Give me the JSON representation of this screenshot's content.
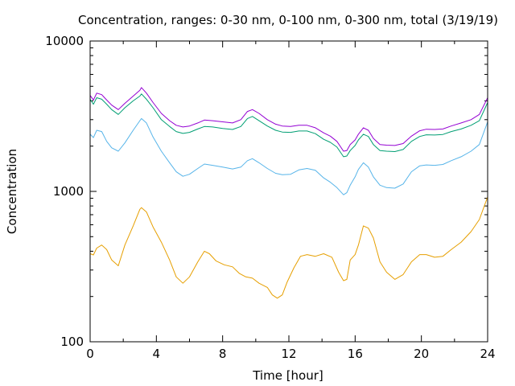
{
  "chart_data": {
    "type": "line",
    "title": "Concentration, ranges: 0-30 nm, 0-100 nm, 0-300 nm, total (3/19/19)",
    "xlabel": "Time [hour]",
    "ylabel": "Concentration",
    "xlim": [
      0,
      24
    ],
    "ylim": [
      100,
      10000
    ],
    "yscale": "log",
    "grid": false,
    "legend": "none",
    "x_ticks": [
      "0",
      "4",
      "8",
      "12",
      "16",
      "20",
      "24"
    ],
    "y_ticks": [
      "100",
      "1000",
      "10000"
    ],
    "series": [
      {
        "color": "#e69f00",
        "points": [
          [
            0,
            385
          ],
          [
            0.2,
            378
          ],
          [
            0.4,
            420
          ],
          [
            0.7,
            440
          ],
          [
            1,
            410
          ],
          [
            1.3,
            350
          ],
          [
            1.7,
            320
          ],
          [
            2.1,
            440
          ],
          [
            2.6,
            590
          ],
          [
            3.0,
            760
          ],
          [
            3.1,
            780
          ],
          [
            3.4,
            730
          ],
          [
            3.8,
            580
          ],
          [
            4.3,
            460
          ],
          [
            4.8,
            350
          ],
          [
            5.2,
            270
          ],
          [
            5.6,
            245
          ],
          [
            6.0,
            270
          ],
          [
            6.5,
            340
          ],
          [
            6.9,
            400
          ],
          [
            7.2,
            385
          ],
          [
            7.6,
            345
          ],
          [
            8.1,
            325
          ],
          [
            8.6,
            315
          ],
          [
            9.0,
            285
          ],
          [
            9.4,
            270
          ],
          [
            9.8,
            265
          ],
          [
            10.2,
            245
          ],
          [
            10.7,
            230
          ],
          [
            11.0,
            205
          ],
          [
            11.3,
            195
          ],
          [
            11.6,
            205
          ],
          [
            11.9,
            250
          ],
          [
            12.3,
            310
          ],
          [
            12.7,
            370
          ],
          [
            13.1,
            380
          ],
          [
            13.6,
            370
          ],
          [
            14.1,
            385
          ],
          [
            14.6,
            365
          ],
          [
            15.0,
            290
          ],
          [
            15.3,
            255
          ],
          [
            15.5,
            260
          ],
          [
            15.7,
            350
          ],
          [
            16.0,
            380
          ],
          [
            16.2,
            440
          ],
          [
            16.5,
            590
          ],
          [
            16.8,
            570
          ],
          [
            17.1,
            490
          ],
          [
            17.5,
            340
          ],
          [
            17.9,
            290
          ],
          [
            18.4,
            260
          ],
          [
            18.9,
            280
          ],
          [
            19.4,
            340
          ],
          [
            19.9,
            380
          ],
          [
            20.3,
            380
          ],
          [
            20.8,
            365
          ],
          [
            21.3,
            370
          ],
          [
            21.8,
            410
          ],
          [
            22.4,
            460
          ],
          [
            23.0,
            540
          ],
          [
            23.5,
            650
          ],
          [
            24,
            920
          ]
        ]
      },
      {
        "color": "#56b4e9",
        "points": [
          [
            0,
            2400
          ],
          [
            0.2,
            2280
          ],
          [
            0.4,
            2550
          ],
          [
            0.7,
            2500
          ],
          [
            1,
            2150
          ],
          [
            1.3,
            1950
          ],
          [
            1.7,
            1850
          ],
          [
            2.1,
            2100
          ],
          [
            2.6,
            2550
          ],
          [
            3.0,
            2950
          ],
          [
            3.1,
            3050
          ],
          [
            3.4,
            2850
          ],
          [
            3.8,
            2300
          ],
          [
            4.3,
            1850
          ],
          [
            4.8,
            1550
          ],
          [
            5.2,
            1350
          ],
          [
            5.6,
            1260
          ],
          [
            6.0,
            1300
          ],
          [
            6.5,
            1420
          ],
          [
            6.9,
            1520
          ],
          [
            7.4,
            1490
          ],
          [
            8.0,
            1450
          ],
          [
            8.6,
            1410
          ],
          [
            9.1,
            1450
          ],
          [
            9.5,
            1600
          ],
          [
            9.8,
            1650
          ],
          [
            10.2,
            1550
          ],
          [
            10.7,
            1420
          ],
          [
            11.2,
            1320
          ],
          [
            11.6,
            1290
          ],
          [
            12.1,
            1300
          ],
          [
            12.6,
            1390
          ],
          [
            13.1,
            1420
          ],
          [
            13.6,
            1380
          ],
          [
            14.1,
            1230
          ],
          [
            14.5,
            1150
          ],
          [
            14.9,
            1060
          ],
          [
            15.3,
            950
          ],
          [
            15.5,
            980
          ],
          [
            15.7,
            1100
          ],
          [
            16.0,
            1250
          ],
          [
            16.2,
            1400
          ],
          [
            16.5,
            1550
          ],
          [
            16.8,
            1450
          ],
          [
            17.1,
            1250
          ],
          [
            17.5,
            1100
          ],
          [
            17.9,
            1060
          ],
          [
            18.4,
            1050
          ],
          [
            18.9,
            1120
          ],
          [
            19.4,
            1350
          ],
          [
            19.9,
            1480
          ],
          [
            20.3,
            1500
          ],
          [
            20.8,
            1490
          ],
          [
            21.3,
            1510
          ],
          [
            21.8,
            1600
          ],
          [
            22.4,
            1700
          ],
          [
            23.0,
            1850
          ],
          [
            23.5,
            2050
          ],
          [
            24,
            2900
          ]
        ]
      },
      {
        "color": "#009e73",
        "points": [
          [
            0,
            4100
          ],
          [
            0.2,
            3800
          ],
          [
            0.4,
            4200
          ],
          [
            0.7,
            4100
          ],
          [
            1,
            3800
          ],
          [
            1.3,
            3500
          ],
          [
            1.7,
            3250
          ],
          [
            2.1,
            3600
          ],
          [
            2.6,
            4000
          ],
          [
            3.0,
            4300
          ],
          [
            3.1,
            4450
          ],
          [
            3.4,
            4100
          ],
          [
            3.8,
            3600
          ],
          [
            4.3,
            3000
          ],
          [
            4.8,
            2700
          ],
          [
            5.2,
            2500
          ],
          [
            5.6,
            2430
          ],
          [
            6.0,
            2470
          ],
          [
            6.5,
            2600
          ],
          [
            6.9,
            2700
          ],
          [
            7.4,
            2680
          ],
          [
            8.0,
            2620
          ],
          [
            8.6,
            2580
          ],
          [
            9.1,
            2700
          ],
          [
            9.5,
            3050
          ],
          [
            9.8,
            3150
          ],
          [
            10.2,
            2950
          ],
          [
            10.7,
            2720
          ],
          [
            11.2,
            2550
          ],
          [
            11.6,
            2480
          ],
          [
            12.1,
            2470
          ],
          [
            12.6,
            2520
          ],
          [
            13.1,
            2520
          ],
          [
            13.6,
            2420
          ],
          [
            14.1,
            2220
          ],
          [
            14.5,
            2120
          ],
          [
            14.9,
            1970
          ],
          [
            15.3,
            1700
          ],
          [
            15.5,
            1720
          ],
          [
            15.7,
            1870
          ],
          [
            16.0,
            2020
          ],
          [
            16.2,
            2200
          ],
          [
            16.5,
            2400
          ],
          [
            16.8,
            2320
          ],
          [
            17.1,
            2050
          ],
          [
            17.5,
            1870
          ],
          [
            17.9,
            1850
          ],
          [
            18.4,
            1840
          ],
          [
            18.9,
            1900
          ],
          [
            19.4,
            2150
          ],
          [
            19.9,
            2320
          ],
          [
            20.3,
            2380
          ],
          [
            20.8,
            2370
          ],
          [
            21.3,
            2390
          ],
          [
            21.8,
            2500
          ],
          [
            22.4,
            2600
          ],
          [
            23.0,
            2750
          ],
          [
            23.5,
            2950
          ],
          [
            24,
            3900
          ]
        ]
      },
      {
        "color": "#9400d3",
        "points": [
          [
            0,
            4350
          ],
          [
            0.2,
            4050
          ],
          [
            0.4,
            4500
          ],
          [
            0.7,
            4400
          ],
          [
            1,
            4050
          ],
          [
            1.3,
            3750
          ],
          [
            1.7,
            3500
          ],
          [
            2.1,
            3850
          ],
          [
            2.6,
            4300
          ],
          [
            3.0,
            4700
          ],
          [
            3.1,
            4900
          ],
          [
            3.4,
            4500
          ],
          [
            3.8,
            3900
          ],
          [
            4.3,
            3300
          ],
          [
            4.8,
            2950
          ],
          [
            5.2,
            2750
          ],
          [
            5.6,
            2680
          ],
          [
            6.0,
            2720
          ],
          [
            6.5,
            2850
          ],
          [
            6.9,
            2980
          ],
          [
            7.4,
            2950
          ],
          [
            8.0,
            2900
          ],
          [
            8.6,
            2850
          ],
          [
            9.1,
            3000
          ],
          [
            9.5,
            3400
          ],
          [
            9.8,
            3500
          ],
          [
            10.2,
            3300
          ],
          [
            10.7,
            3000
          ],
          [
            11.2,
            2800
          ],
          [
            11.6,
            2720
          ],
          [
            12.1,
            2700
          ],
          [
            12.6,
            2750
          ],
          [
            13.1,
            2750
          ],
          [
            13.6,
            2650
          ],
          [
            14.1,
            2450
          ],
          [
            14.5,
            2330
          ],
          [
            14.9,
            2150
          ],
          [
            15.3,
            1850
          ],
          [
            15.5,
            1870
          ],
          [
            15.7,
            2050
          ],
          [
            16.0,
            2200
          ],
          [
            16.2,
            2400
          ],
          [
            16.5,
            2650
          ],
          [
            16.8,
            2550
          ],
          [
            17.1,
            2250
          ],
          [
            17.5,
            2050
          ],
          [
            17.9,
            2030
          ],
          [
            18.4,
            2020
          ],
          [
            18.9,
            2080
          ],
          [
            19.4,
            2330
          ],
          [
            19.9,
            2530
          ],
          [
            20.3,
            2590
          ],
          [
            20.8,
            2580
          ],
          [
            21.3,
            2600
          ],
          [
            21.8,
            2720
          ],
          [
            22.4,
            2850
          ],
          [
            23.0,
            3000
          ],
          [
            23.5,
            3250
          ],
          [
            24,
            4200
          ]
        ]
      }
    ]
  }
}
